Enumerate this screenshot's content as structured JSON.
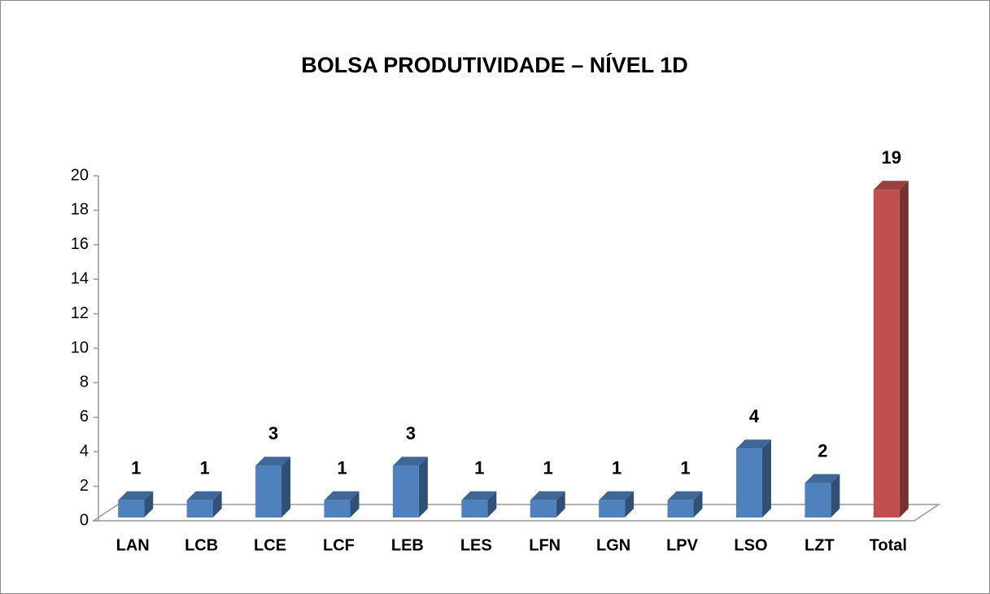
{
  "chart_data": {
    "type": "bar3d",
    "title": "BOLSA PRODUTIVIDADE – NÍVEL 1D",
    "categories": [
      "LAN",
      "LCB",
      "LCE",
      "LCF",
      "LEB",
      "LES",
      "LFN",
      "LGN",
      "LPV",
      "LSO",
      "LZT",
      "Total"
    ],
    "values": [
      1,
      1,
      3,
      1,
      3,
      1,
      1,
      1,
      1,
      4,
      2,
      19
    ],
    "colors": [
      "#4f81bd",
      "#4f81bd",
      "#4f81bd",
      "#4f81bd",
      "#4f81bd",
      "#4f81bd",
      "#4f81bd",
      "#4f81bd",
      "#4f81bd",
      "#4f81bd",
      "#4f81bd",
      "#c0504d"
    ],
    "ylim": [
      0,
      20
    ],
    "yticks": [
      0,
      2,
      4,
      6,
      8,
      10,
      12,
      14,
      16,
      18,
      20
    ],
    "grid": false
  }
}
